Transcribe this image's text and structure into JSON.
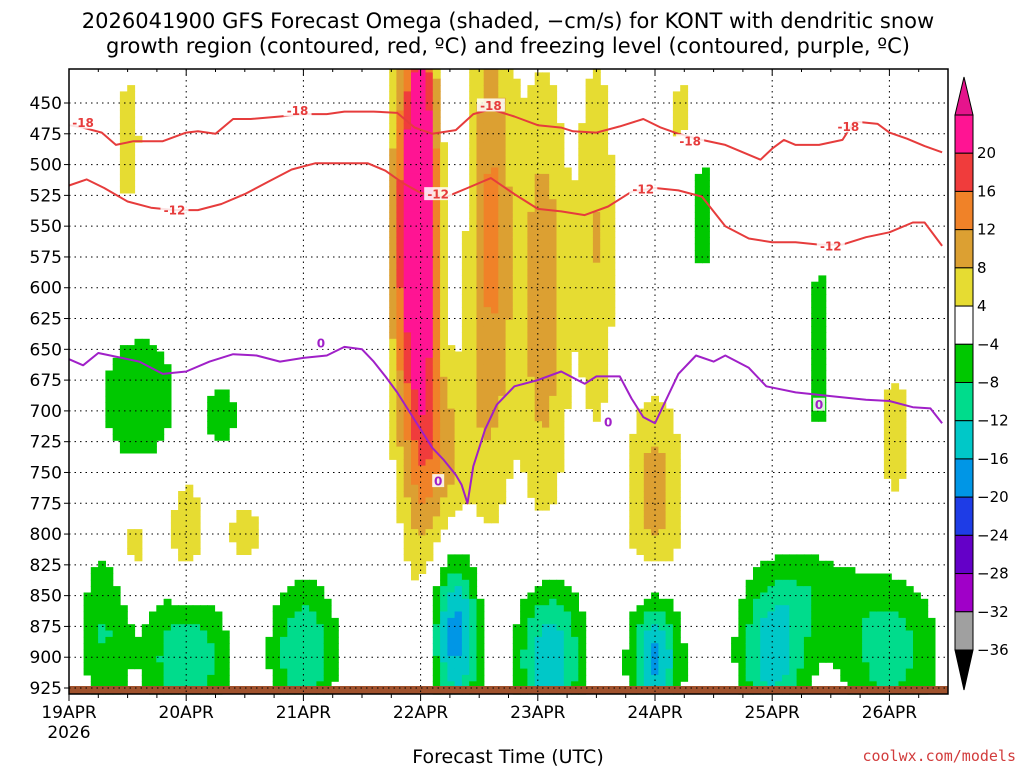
{
  "chart_data": {
    "type": "heatmap",
    "title_lines": [
      "2026041900 GFS Forecast Omega (shaded, −cm/s) for KONT with dendritic snow",
      "growth region (contoured, red, ºC) and freezing level (contoured, purple, ºC)"
    ],
    "xlabel": "Forecast Time (UTC)",
    "credit": "coolwx.com/models",
    "x_ticks": [
      "19APR",
      "20APR",
      "21APR",
      "22APR",
      "23APR",
      "24APR",
      "25APR",
      "26APR"
    ],
    "x_year": "2026",
    "x_range_days": [
      0,
      7.45
    ],
    "y_ticks": [
      450,
      475,
      500,
      525,
      550,
      575,
      600,
      625,
      650,
      675,
      700,
      725,
      750,
      775,
      800,
      825,
      850,
      875,
      900,
      925
    ],
    "y_range_hPa": [
      420,
      935
    ],
    "colorbar": {
      "labels": [
        "20",
        "16",
        "12",
        "8",
        "4",
        "−4",
        "−8",
        "−12",
        "−16",
        "−20",
        "−24",
        "−28",
        "−32",
        "−36"
      ],
      "bands": [
        {
          "lo": 20,
          "hi": 24,
          "color": "#ff1493"
        },
        {
          "lo": 16,
          "hi": 20,
          "color": "#f03c3c"
        },
        {
          "lo": 12,
          "hi": 16,
          "color": "#f08228"
        },
        {
          "lo": 8,
          "hi": 12,
          "color": "#dca032"
        },
        {
          "lo": 4,
          "hi": 8,
          "color": "#e6dc32"
        },
        {
          "lo": -4,
          "hi": 4,
          "color": "#ffffff"
        },
        {
          "lo": -8,
          "hi": -4,
          "color": "#00c800"
        },
        {
          "lo": -12,
          "hi": -8,
          "color": "#00dc8c"
        },
        {
          "lo": -16,
          "hi": -12,
          "color": "#00c8c8"
        },
        {
          "lo": -20,
          "hi": -16,
          "color": "#0096e6"
        },
        {
          "lo": -24,
          "hi": -20,
          "color": "#1e3ce6"
        },
        {
          "lo": -28,
          "hi": -24,
          "color": "#6400c8"
        },
        {
          "lo": -32,
          "hi": -28,
          "color": "#a000c8"
        },
        {
          "lo": -36,
          "hi": -32,
          "color": "#a0a0a0"
        }
      ],
      "top_arrow_color": "#e6148c",
      "bottom_arrow_color": "#000000"
    },
    "ground_color": "#a0522d",
    "contours": [
      {
        "name": "dgz-minus-18",
        "label": "-18",
        "color": "#e63c3c",
        "points": [
          [
            0.0,
            468
          ],
          [
            0.12,
            470
          ],
          [
            0.28,
            474
          ],
          [
            0.4,
            484
          ],
          [
            0.55,
            481
          ],
          [
            0.8,
            481
          ],
          [
            1.0,
            474
          ],
          [
            1.1,
            473
          ],
          [
            1.25,
            475
          ],
          [
            1.4,
            463
          ],
          [
            1.55,
            463
          ],
          [
            1.8,
            461
          ],
          [
            2.0,
            459
          ],
          [
            2.2,
            459
          ],
          [
            2.35,
            457
          ],
          [
            2.6,
            457
          ],
          [
            2.8,
            458
          ],
          [
            2.95,
            470
          ],
          [
            3.1,
            475
          ],
          [
            3.3,
            472
          ],
          [
            3.45,
            459
          ],
          [
            3.6,
            455
          ],
          [
            3.8,
            461
          ],
          [
            4.0,
            468
          ],
          [
            4.2,
            470
          ],
          [
            4.3,
            473
          ],
          [
            4.5,
            474
          ],
          [
            4.7,
            469
          ],
          [
            4.9,
            463
          ],
          [
            5.05,
            470
          ],
          [
            5.2,
            475
          ],
          [
            5.4,
            480
          ],
          [
            5.6,
            484
          ],
          [
            5.75,
            490
          ],
          [
            5.9,
            496
          ],
          [
            6.0,
            487
          ],
          [
            6.1,
            480
          ],
          [
            6.2,
            484
          ],
          [
            6.4,
            484
          ],
          [
            6.6,
            480
          ],
          [
            6.7,
            465
          ],
          [
            6.9,
            467
          ],
          [
            7.0,
            474
          ],
          [
            7.15,
            479
          ],
          [
            7.3,
            485
          ],
          [
            7.45,
            490
          ]
        ],
        "label_positions": [
          [
            0.12,
            466
          ],
          [
            1.95,
            456
          ],
          [
            3.6,
            452
          ],
          [
            5.3,
            481
          ],
          [
            6.65,
            469
          ]
        ]
      },
      {
        "name": "dgz-minus-12",
        "label": "-12",
        "color": "#e63c3c",
        "points": [
          [
            0.0,
            517
          ],
          [
            0.15,
            512
          ],
          [
            0.3,
            519
          ],
          [
            0.5,
            530
          ],
          [
            0.7,
            535
          ],
          [
            0.9,
            537
          ],
          [
            1.1,
            537
          ],
          [
            1.3,
            532
          ],
          [
            1.5,
            524
          ],
          [
            1.7,
            514
          ],
          [
            1.9,
            504
          ],
          [
            2.1,
            499
          ],
          [
            2.3,
            499
          ],
          [
            2.55,
            499
          ],
          [
            2.7,
            505
          ],
          [
            2.85,
            515
          ],
          [
            3.0,
            523
          ],
          [
            3.2,
            527
          ],
          [
            3.4,
            519
          ],
          [
            3.6,
            511
          ],
          [
            3.8,
            524
          ],
          [
            4.0,
            536
          ],
          [
            4.2,
            538
          ],
          [
            4.4,
            541
          ],
          [
            4.6,
            534
          ],
          [
            4.8,
            522
          ],
          [
            5.0,
            519
          ],
          [
            5.2,
            521
          ],
          [
            5.4,
            526
          ],
          [
            5.6,
            550
          ],
          [
            5.8,
            560
          ],
          [
            6.0,
            563
          ],
          [
            6.2,
            563
          ],
          [
            6.4,
            565
          ],
          [
            6.6,
            565
          ],
          [
            6.8,
            559
          ],
          [
            7.0,
            555
          ],
          [
            7.2,
            547
          ],
          [
            7.3,
            547
          ],
          [
            7.45,
            566
          ]
        ],
        "label_positions": [
          [
            0.9,
            537
          ],
          [
            3.15,
            524
          ],
          [
            4.9,
            520
          ],
          [
            6.5,
            566
          ]
        ]
      },
      {
        "name": "freezing-level-0",
        "label": "0",
        "color": "#a020c8",
        "points": [
          [
            0.0,
            658
          ],
          [
            0.12,
            663
          ],
          [
            0.25,
            653
          ],
          [
            0.45,
            657
          ],
          [
            0.6,
            660
          ],
          [
            0.8,
            670
          ],
          [
            1.0,
            668
          ],
          [
            1.2,
            660
          ],
          [
            1.4,
            654
          ],
          [
            1.6,
            655
          ],
          [
            1.8,
            660
          ],
          [
            2.0,
            657
          ],
          [
            2.2,
            655
          ],
          [
            2.35,
            648
          ],
          [
            2.5,
            650
          ],
          [
            2.6,
            660
          ],
          [
            2.7,
            672
          ],
          [
            2.8,
            685
          ],
          [
            2.9,
            700
          ],
          [
            3.0,
            715
          ],
          [
            3.1,
            730
          ],
          [
            3.2,
            740
          ],
          [
            3.3,
            752
          ],
          [
            3.35,
            760
          ],
          [
            3.4,
            775
          ],
          [
            3.45,
            745
          ],
          [
            3.55,
            715
          ],
          [
            3.65,
            695
          ],
          [
            3.8,
            680
          ],
          [
            4.0,
            675
          ],
          [
            4.2,
            668
          ],
          [
            4.4,
            678
          ],
          [
            4.5,
            672
          ],
          [
            4.7,
            672
          ],
          [
            4.8,
            690
          ],
          [
            4.9,
            705
          ],
          [
            5.0,
            710
          ],
          [
            5.1,
            690
          ],
          [
            5.2,
            670
          ],
          [
            5.35,
            655
          ],
          [
            5.5,
            660
          ],
          [
            5.6,
            655
          ],
          [
            5.8,
            665
          ],
          [
            5.95,
            680
          ],
          [
            6.2,
            685
          ],
          [
            6.5,
            688
          ],
          [
            6.8,
            691
          ],
          [
            7.0,
            692
          ],
          [
            7.2,
            697
          ],
          [
            7.35,
            698
          ],
          [
            7.45,
            710
          ]
        ],
        "label_positions": [
          [
            2.15,
            645
          ],
          [
            3.15,
            757
          ],
          [
            4.6,
            709
          ],
          [
            6.4,
            695
          ]
        ]
      }
    ],
    "shaded_regions": [
      {
        "x": 3.0,
        "p": 520,
        "sx": 0.09,
        "sp": 100,
        "val": 24
      },
      {
        "x": 3.0,
        "p": 610,
        "sx": 0.11,
        "sp": 140,
        "val": 14
      },
      {
        "x": 2.82,
        "p": 560,
        "sx": 0.08,
        "sp": 120,
        "val": 10
      },
      {
        "x": 3.6,
        "p": 560,
        "sx": 0.14,
        "sp": 150,
        "val": 13
      },
      {
        "x": 4.05,
        "p": 610,
        "sx": 0.15,
        "sp": 130,
        "val": 11
      },
      {
        "x": 4.5,
        "p": 560,
        "sx": 0.12,
        "sp": 120,
        "val": 8
      },
      {
        "x": 3.2,
        "p": 740,
        "sx": 0.18,
        "sp": 60,
        "val": 9
      },
      {
        "x": 1.0,
        "p": 800,
        "sx": 0.12,
        "sp": 40,
        "val": 7
      },
      {
        "x": 0.55,
        "p": 810,
        "sx": 0.1,
        "sp": 25,
        "val": 6
      },
      {
        "x": 1.5,
        "p": 800,
        "sx": 0.2,
        "sp": 30,
        "val": 5
      },
      {
        "x": 5.0,
        "p": 770,
        "sx": 0.18,
        "sp": 60,
        "val": 10
      },
      {
        "x": 5.3,
        "p": 460,
        "sx": 0.18,
        "sp": 40,
        "val": 6
      },
      {
        "x": 0.5,
        "p": 480,
        "sx": 0.1,
        "sp": 50,
        "val": 6
      },
      {
        "x": 7.05,
        "p": 720,
        "sx": 0.12,
        "sp": 50,
        "val": 6
      },
      {
        "x": 3.3,
        "p": 880,
        "sx": 0.15,
        "sp": 50,
        "val": -18
      },
      {
        "x": 2.0,
        "p": 895,
        "sx": 0.2,
        "sp": 40,
        "val": -12
      },
      {
        "x": 1.0,
        "p": 900,
        "sx": 0.25,
        "sp": 40,
        "val": -12
      },
      {
        "x": 0.3,
        "p": 880,
        "sx": 0.15,
        "sp": 50,
        "val": -8
      },
      {
        "x": 4.1,
        "p": 900,
        "sx": 0.2,
        "sp": 45,
        "val": -16
      },
      {
        "x": 5.0,
        "p": 900,
        "sx": 0.15,
        "sp": 40,
        "val": -18
      },
      {
        "x": 6.0,
        "p": 900,
        "sx": 0.2,
        "sp": 40,
        "val": -14
      },
      {
        "x": 7.0,
        "p": 895,
        "sx": 0.3,
        "sp": 45,
        "val": -10
      },
      {
        "x": 0.6,
        "p": 690,
        "sx": 0.25,
        "sp": 40,
        "val": -8
      },
      {
        "x": 1.3,
        "p": 705,
        "sx": 0.12,
        "sp": 25,
        "val": -6
      },
      {
        "x": 6.4,
        "p": 650,
        "sx": 0.08,
        "sp": 60,
        "val": -7
      },
      {
        "x": 5.4,
        "p": 520,
        "sx": 0.1,
        "sp": 60,
        "val": -7
      },
      {
        "x": 6.3,
        "p": 850,
        "sx": 0.3,
        "sp": 30,
        "val": -6
      }
    ]
  }
}
